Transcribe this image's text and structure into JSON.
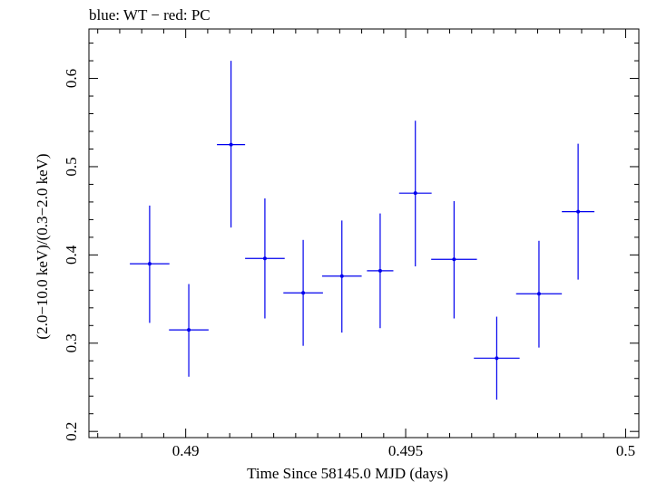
{
  "chart_data": {
    "type": "scatter",
    "title": "blue: WT − red: PC",
    "xlabel": "Time Since 58145.0 MJD (days)",
    "ylabel": "(2.0−10.0 keV)/(0.3−2.0 keV)",
    "xlim": [
      0.4878,
      0.5003
    ],
    "ylim": [
      0.193,
      0.656
    ],
    "x_ticks": [
      0.49,
      0.495,
      0.5
    ],
    "x_tick_labels": [
      "0.49",
      "0.495",
      "0.5"
    ],
    "y_ticks": [
      0.2,
      0.3,
      0.4,
      0.5,
      0.6
    ],
    "y_tick_labels": [
      "0.2",
      "0.3",
      "0.4",
      "0.5",
      "0.6"
    ],
    "grid": false,
    "series": [
      {
        "color": "#0000ee",
        "points": [
          {
            "x": 0.48918,
            "y": 0.39,
            "xerr": 0.00045,
            "yerr_low": 0.067,
            "yerr_high": 0.066
          },
          {
            "x": 0.49007,
            "y": 0.315,
            "xerr": 0.00045,
            "yerr_low": 0.053,
            "yerr_high": 0.052
          },
          {
            "x": 0.49103,
            "y": 0.525,
            "xerr": 0.00032,
            "yerr_low": 0.094,
            "yerr_high": 0.095
          },
          {
            "x": 0.4918,
            "y": 0.396,
            "xerr": 0.00045,
            "yerr_low": 0.068,
            "yerr_high": 0.068
          },
          {
            "x": 0.49267,
            "y": 0.357,
            "xerr": 0.00045,
            "yerr_low": 0.06,
            "yerr_high": 0.06
          },
          {
            "x": 0.49355,
            "y": 0.376,
            "xerr": 0.00045,
            "yerr_low": 0.064,
            "yerr_high": 0.063
          },
          {
            "x": 0.49442,
            "y": 0.382,
            "xerr": 0.0003,
            "yerr_low": 0.065,
            "yerr_high": 0.065
          },
          {
            "x": 0.49522,
            "y": 0.47,
            "xerr": 0.00037,
            "yerr_low": 0.083,
            "yerr_high": 0.082
          },
          {
            "x": 0.4961,
            "y": 0.395,
            "xerr": 0.00052,
            "yerr_low": 0.067,
            "yerr_high": 0.066
          },
          {
            "x": 0.49707,
            "y": 0.283,
            "xerr": 0.00052,
            "yerr_low": 0.047,
            "yerr_high": 0.047
          },
          {
            "x": 0.49803,
            "y": 0.356,
            "xerr": 0.00052,
            "yerr_low": 0.061,
            "yerr_high": 0.06
          },
          {
            "x": 0.49892,
            "y": 0.449,
            "xerr": 0.00037,
            "yerr_low": 0.077,
            "yerr_high": 0.077
          }
        ]
      }
    ]
  }
}
